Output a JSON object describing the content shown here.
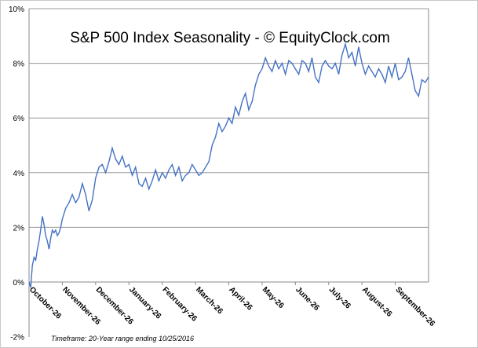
{
  "chart_data": {
    "type": "line",
    "title": "S&P 500 Index Seasonality - © EquityClock.com",
    "footnote": "Timeframe: 20-Year range ending 10/25/2016",
    "ylim": [
      -2,
      10
    ],
    "yticks": [
      "-2%",
      "0%",
      "2%",
      "4%",
      "6%",
      "8%",
      "10%"
    ],
    "grid": true,
    "line_color": "#4472c4",
    "x_tick_labels": [
      "October-26",
      "November-26",
      "December-26",
      "January-26",
      "February-26",
      "March-26",
      "April-26",
      "May-26",
      "June-26",
      "July-26",
      "August-26",
      "September-26"
    ],
    "series": [
      {
        "x_month_index": [
          0,
          0.05,
          0.1,
          0.15,
          0.2,
          0.25,
          0.3,
          0.35,
          0.4,
          0.45,
          0.5,
          0.55,
          0.6,
          0.65,
          0.7,
          0.75,
          0.8,
          0.85,
          0.9,
          0.95,
          1.0,
          1.1,
          1.2,
          1.3,
          1.4,
          1.5,
          1.6,
          1.7,
          1.8,
          1.9,
          2.0,
          2.1,
          2.2,
          2.3,
          2.4,
          2.5,
          2.6,
          2.7,
          2.8,
          2.9,
          3.0,
          3.1,
          3.2,
          3.3,
          3.4,
          3.5,
          3.6,
          3.7,
          3.8,
          3.9,
          4.0,
          4.1,
          4.2,
          4.3,
          4.4,
          4.5,
          4.6,
          4.7,
          4.8,
          4.9,
          5.0,
          5.1,
          5.2,
          5.3,
          5.4,
          5.5,
          5.6,
          5.7,
          5.8,
          5.9,
          6.0,
          6.1,
          6.2,
          6.3,
          6.4,
          6.5,
          6.6,
          6.7,
          6.8,
          6.9,
          7.0,
          7.1,
          7.2,
          7.3,
          7.4,
          7.5,
          7.6,
          7.7,
          7.8,
          7.9,
          8.0,
          8.1,
          8.2,
          8.3,
          8.4,
          8.5,
          8.6,
          8.7,
          8.8,
          8.9,
          9.0,
          9.1,
          9.2,
          9.3,
          9.4,
          9.5,
          9.6,
          9.7,
          9.8,
          9.9,
          10.0,
          10.1,
          10.2,
          10.3,
          10.4,
          10.5,
          10.6,
          10.7,
          10.8,
          10.9,
          11.0,
          11.1,
          11.2,
          11.3,
          11.4,
          11.5,
          11.6,
          11.7,
          11.8,
          11.9,
          12.0
        ],
        "values": [
          0.0,
          -0.2,
          0.6,
          0.9,
          0.8,
          1.2,
          1.5,
          1.9,
          2.4,
          2.1,
          1.7,
          1.5,
          1.2,
          1.6,
          1.9,
          1.8,
          1.9,
          1.7,
          1.8,
          2.0,
          2.3,
          2.7,
          2.9,
          3.2,
          2.9,
          3.1,
          3.6,
          3.2,
          2.6,
          3.0,
          3.8,
          4.2,
          4.3,
          4.0,
          4.4,
          4.9,
          4.5,
          4.3,
          4.6,
          4.2,
          4.3,
          3.9,
          4.2,
          3.6,
          3.5,
          3.8,
          3.4,
          3.7,
          4.1,
          3.7,
          4.0,
          3.8,
          4.1,
          4.3,
          3.9,
          4.2,
          3.7,
          3.9,
          4.0,
          4.3,
          4.1,
          3.9,
          4.0,
          4.2,
          4.4,
          5.0,
          5.3,
          5.8,
          5.5,
          5.7,
          6.0,
          5.8,
          6.4,
          6.1,
          6.6,
          6.9,
          6.3,
          6.6,
          7.2,
          7.6,
          7.8,
          8.2,
          7.9,
          7.7,
          8.1,
          7.8,
          8.0,
          7.6,
          8.1,
          8.0,
          7.8,
          7.6,
          8.1,
          8.0,
          7.7,
          8.2,
          7.5,
          7.3,
          7.9,
          8.1,
          7.9,
          7.8,
          8.0,
          7.6,
          8.3,
          8.7,
          8.2,
          8.4,
          7.9,
          8.6,
          8.0,
          7.6,
          7.9,
          7.7,
          7.5,
          7.8,
          7.6,
          7.3,
          7.9,
          7.5,
          8.0,
          7.4,
          7.5,
          7.7,
          8.2,
          7.6,
          7.0,
          6.8,
          7.4,
          7.3,
          7.5
        ]
      }
    ]
  }
}
